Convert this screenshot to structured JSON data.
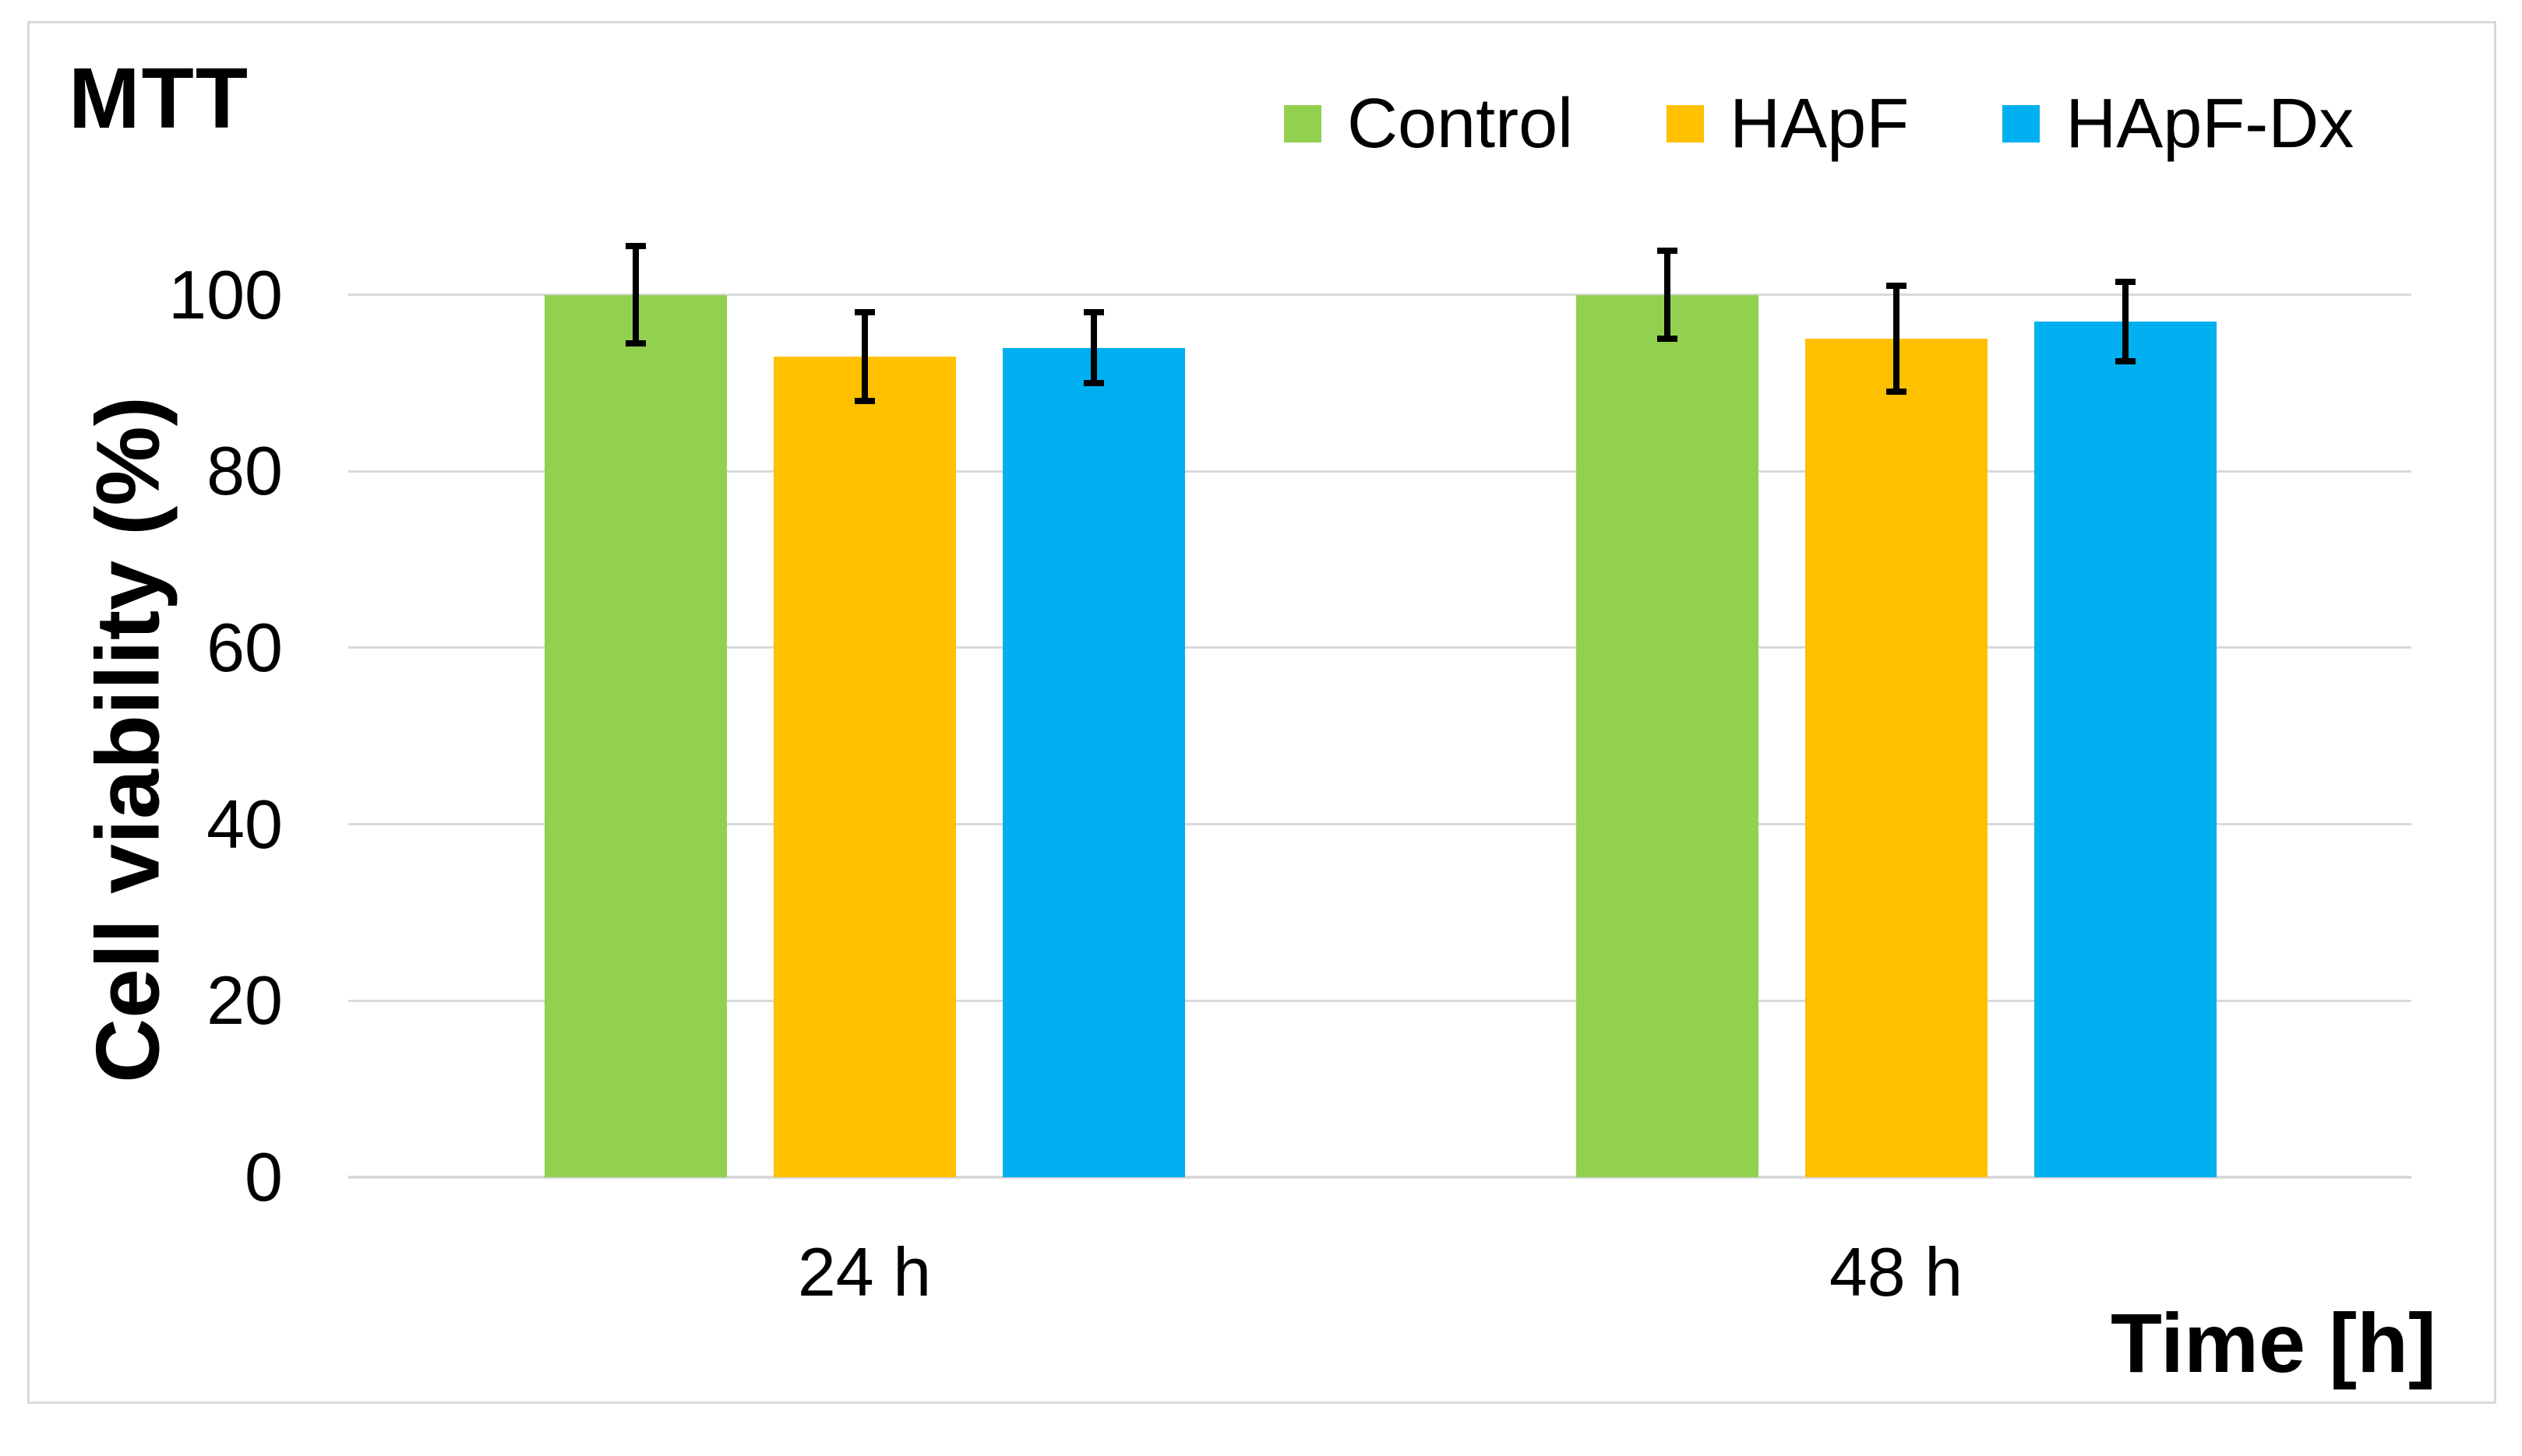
{
  "chart_data": {
    "type": "bar",
    "title": "MTT",
    "categories": [
      "24 h",
      "48 h"
    ],
    "series": [
      {
        "name": "Control",
        "color": "#92D050",
        "values": [
          100,
          100
        ],
        "errors": [
          5.5,
          5
        ]
      },
      {
        "name": "HApF",
        "color": "#FFC000",
        "values": [
          93,
          95
        ],
        "errors": [
          5,
          6
        ]
      },
      {
        "name": "HApF-Dx",
        "color": "#00B0F0",
        "values": [
          94,
          97
        ],
        "errors": [
          4,
          4.5
        ]
      }
    ],
    "xlabel": "Time [h]",
    "ylabel": "Cell viability (%)",
    "y_ticks": [
      0,
      20,
      40,
      60,
      80,
      100
    ],
    "ylim": [
      0,
      110
    ],
    "grid": true,
    "legend_position": "top-right"
  },
  "colors": {
    "grid": "#d9d9d9",
    "frame": "#d9d9d9",
    "error_bar": "#000000",
    "text": "#000000",
    "background": "#ffffff"
  }
}
